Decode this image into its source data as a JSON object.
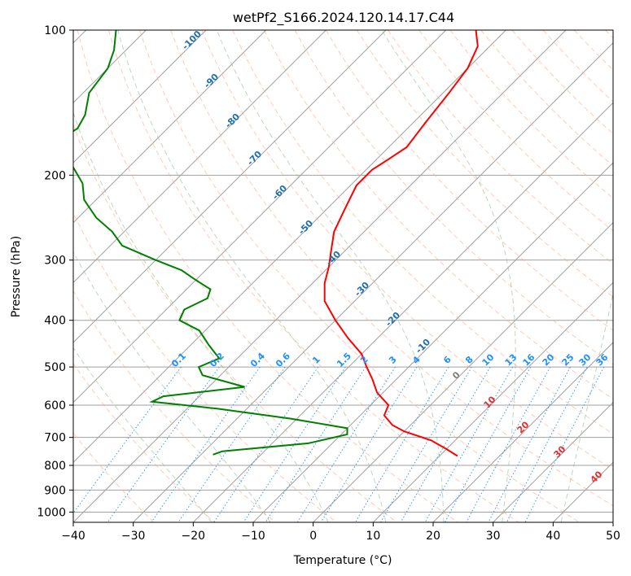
{
  "chart_data": {
    "type": "line",
    "title": "wetPf2_S166.2024.120.14.17.C44",
    "xlabel": "Temperature (°C)",
    "ylabel": "Pressure (hPa)",
    "xlim": [
      -40,
      50
    ],
    "ylim": [
      1050,
      100
    ],
    "y_scale": "log",
    "x_ticks": [
      -40,
      -30,
      -20,
      -10,
      0,
      10,
      20,
      30,
      40,
      50
    ],
    "y_ticks": [
      1000,
      900,
      800,
      700,
      600,
      500,
      400,
      300,
      200,
      100
    ],
    "grid": true,
    "skew_ratio": 1.0,
    "series": [
      {
        "color": "#ff0000",
        "points": [
          [
            -55,
            100
          ],
          [
            -52,
            108
          ],
          [
            -50,
            120
          ],
          [
            -49,
            135
          ],
          [
            -48,
            155
          ],
          [
            -47,
            175
          ],
          [
            -48,
            185
          ],
          [
            -49,
            195
          ],
          [
            -49,
            210
          ],
          [
            -47,
            235
          ],
          [
            -45,
            262
          ],
          [
            -42,
            290
          ],
          [
            -40,
            310
          ],
          [
            -38,
            335
          ],
          [
            -35,
            365
          ],
          [
            -30,
            400
          ],
          [
            -25,
            435
          ],
          [
            -20,
            470
          ],
          [
            -17,
            500
          ],
          [
            -14,
            530
          ],
          [
            -11,
            565
          ],
          [
            -7,
            600
          ],
          [
            -6,
            630
          ],
          [
            -3,
            660
          ],
          [
            0,
            680
          ],
          [
            6,
            710
          ],
          [
            10,
            740
          ],
          [
            13,
            765
          ]
        ]
      },
      {
        "color": "#008000",
        "points": [
          [
            -115,
            100
          ],
          [
            -112,
            110
          ],
          [
            -110,
            120
          ],
          [
            -109,
            135
          ],
          [
            -106,
            150
          ],
          [
            -105,
            160
          ],
          [
            -106,
            168
          ],
          [
            -103,
            178
          ],
          [
            -100,
            190
          ],
          [
            -95,
            208
          ],
          [
            -92,
            225
          ],
          [
            -87,
            245
          ],
          [
            -82,
            262
          ],
          [
            -78,
            280
          ],
          [
            -70,
            300
          ],
          [
            -64,
            315
          ],
          [
            -60,
            330
          ],
          [
            -56,
            345
          ],
          [
            -55,
            360
          ],
          [
            -57,
            380
          ],
          [
            -56,
            400
          ],
          [
            -51,
            420
          ],
          [
            -47,
            450
          ],
          [
            -43,
            480
          ],
          [
            -45,
            500
          ],
          [
            -43,
            520
          ],
          [
            -34,
            550
          ],
          [
            -46,
            575
          ],
          [
            -47,
            590
          ],
          [
            -35,
            610
          ],
          [
            -21,
            640
          ],
          [
            -10,
            670
          ],
          [
            -9,
            690
          ],
          [
            -14,
            720
          ],
          [
            -27,
            748
          ],
          [
            -28,
            760
          ]
        ]
      }
    ],
    "dry_adiabat_labels": [
      "-100",
      "-90",
      "-80",
      "-70",
      "-60",
      "-50",
      "-40",
      "-30",
      "-20",
      "-10"
    ],
    "mixing_ratio_labels": [
      "0.1",
      "0.2",
      "0.4",
      "0.6",
      "1",
      "1.5",
      "2",
      "3",
      "4",
      "6",
      "8",
      "10",
      "13",
      "16",
      "20",
      "25",
      "30",
      "36"
    ],
    "moist_adiabat_labels": [
      "0",
      "10",
      "20",
      "30",
      "40"
    ],
    "colors": {
      "temperature": "#ff0000",
      "dewpoint": "#008000",
      "isotherm": "#a0a0a0",
      "dry_adiabat": "#ffa07a",
      "moist_adiabat": "#8fbc8f",
      "mixing_ratio": "#1e90ff",
      "dry_label": "#1f6fb0",
      "moist_label": "#e03030",
      "zero_label": "#808080"
    }
  }
}
